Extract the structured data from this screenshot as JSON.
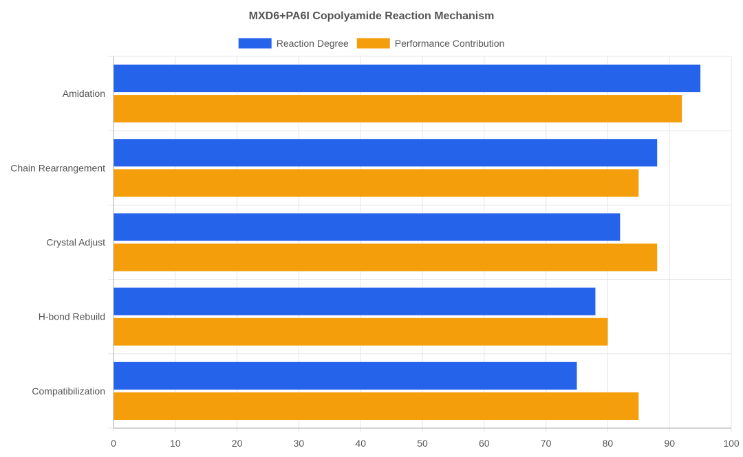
{
  "chart_data": {
    "type": "bar",
    "orientation": "horizontal",
    "title": "MXD6+PA6I Copolyamide Reaction Mechanism",
    "categories": [
      "Amidation",
      "Chain Rearrangement",
      "Crystal Adjust",
      "H-bond Rebuild",
      "Compatibilization"
    ],
    "series": [
      {
        "name": "Reaction Degree",
        "values": [
          95,
          88,
          82,
          78,
          75
        ]
      },
      {
        "name": "Performance Contribution",
        "values": [
          92,
          85,
          88,
          80,
          85
        ]
      }
    ],
    "xlim": [
      0,
      100
    ],
    "xticks": [
      0,
      10,
      20,
      30,
      40,
      50,
      60,
      70,
      80,
      90,
      100
    ],
    "grid": true,
    "legend_position": "top-center",
    "colors": [
      "#2563eb",
      "#f59e0b"
    ]
  }
}
